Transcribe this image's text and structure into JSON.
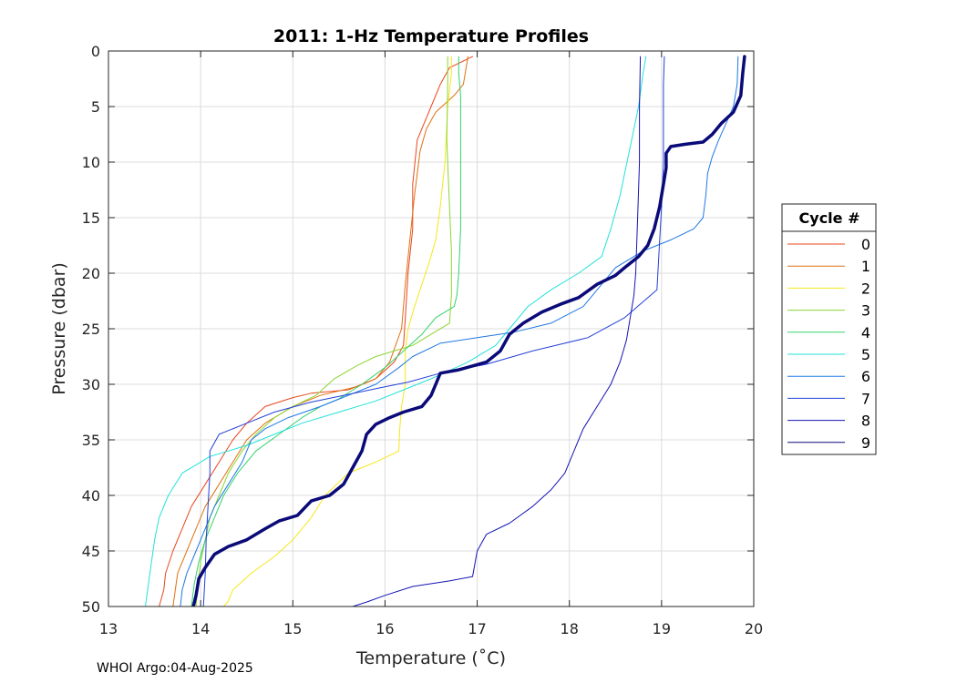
{
  "chart_data": {
    "type": "line",
    "title": "2011: 1-Hz Temperature Profiles",
    "xlabel": "Temperature (˚C)",
    "ylabel": "Pressure (dbar)",
    "xlim": [
      13,
      20
    ],
    "ylim": [
      0,
      50
    ],
    "y_reversed": true,
    "grid": true,
    "xticks": [
      13,
      14,
      15,
      16,
      17,
      18,
      19,
      20
    ],
    "yticks": [
      0,
      5,
      10,
      15,
      20,
      25,
      30,
      35,
      40,
      45,
      50
    ],
    "legend": {
      "title": "Cycle #",
      "placement": "right",
      "entries": [
        "0",
        "1",
        "2",
        "3",
        "4",
        "5",
        "6",
        "7",
        "8",
        "9"
      ]
    },
    "series": [
      {
        "name": "0",
        "color": "#e8461e",
        "width": 1,
        "points": [
          [
            16.95,
            0.5
          ],
          [
            16.7,
            1.5
          ],
          [
            16.6,
            3
          ],
          [
            16.5,
            5
          ],
          [
            16.35,
            8
          ],
          [
            16.3,
            12
          ],
          [
            16.3,
            16
          ],
          [
            16.25,
            20
          ],
          [
            16.22,
            24
          ],
          [
            16.2,
            26.5
          ],
          [
            16.1,
            28
          ],
          [
            15.9,
            29.5
          ],
          [
            15.6,
            30.5
          ],
          [
            15.2,
            30.8
          ],
          [
            15,
            31.2
          ],
          [
            14.7,
            32
          ],
          [
            14.5,
            33.5
          ],
          [
            14.35,
            35
          ],
          [
            14.2,
            37
          ],
          [
            14.05,
            39
          ],
          [
            13.9,
            41
          ],
          [
            13.8,
            43
          ],
          [
            13.7,
            45
          ],
          [
            13.62,
            47
          ],
          [
            13.6,
            48.5
          ],
          [
            13.55,
            50
          ]
        ]
      },
      {
        "name": "1",
        "color": "#e07010",
        "width": 1,
        "points": [
          [
            16.9,
            0.5
          ],
          [
            16.87,
            2
          ],
          [
            16.85,
            3
          ],
          [
            16.75,
            4
          ],
          [
            16.55,
            5.5
          ],
          [
            16.45,
            7
          ],
          [
            16.38,
            9
          ],
          [
            16.32,
            13
          ],
          [
            16.27,
            17
          ],
          [
            16.22,
            21
          ],
          [
            16.18,
            25
          ],
          [
            16.05,
            28
          ],
          [
            15.9,
            29.5
          ],
          [
            15.7,
            30.2
          ],
          [
            15.3,
            31
          ],
          [
            15,
            32
          ],
          [
            14.7,
            33.5
          ],
          [
            14.5,
            35
          ],
          [
            14.35,
            37
          ],
          [
            14.2,
            39
          ],
          [
            14.05,
            41
          ],
          [
            13.95,
            43
          ],
          [
            13.85,
            45
          ],
          [
            13.75,
            47
          ],
          [
            13.7,
            50
          ]
        ]
      },
      {
        "name": "2",
        "color": "#f5e817",
        "width": 1,
        "points": [
          [
            16.72,
            0.5
          ],
          [
            16.72,
            2
          ],
          [
            16.68,
            5
          ],
          [
            16.65,
            10
          ],
          [
            16.6,
            14
          ],
          [
            16.55,
            17
          ],
          [
            16.48,
            19
          ],
          [
            16.4,
            21
          ],
          [
            16.32,
            23
          ],
          [
            16.25,
            25
          ],
          [
            16.22,
            27
          ],
          [
            16.22,
            30
          ],
          [
            16.18,
            32
          ],
          [
            16.16,
            34
          ],
          [
            16.15,
            36
          ],
          [
            15.9,
            37
          ],
          [
            15.6,
            38
          ],
          [
            15.35,
            40
          ],
          [
            15.2,
            42
          ],
          [
            15,
            44
          ],
          [
            14.8,
            45.5
          ],
          [
            14.55,
            47
          ],
          [
            14.35,
            48.5
          ],
          [
            14.3,
            49.5
          ],
          [
            14.25,
            50
          ]
        ]
      },
      {
        "name": "3",
        "color": "#8cd631",
        "width": 1,
        "points": [
          [
            16.68,
            0.5
          ],
          [
            16.68,
            3
          ],
          [
            16.67,
            8
          ],
          [
            16.7,
            14
          ],
          [
            16.72,
            18
          ],
          [
            16.72,
            22
          ],
          [
            16.7,
            24.5
          ],
          [
            16.5,
            25.5
          ],
          [
            16.3,
            26.5
          ],
          [
            16.1,
            27
          ],
          [
            15.9,
            27.5
          ],
          [
            15.7,
            28.3
          ],
          [
            15.45,
            29.5
          ],
          [
            15.25,
            31
          ],
          [
            15,
            32
          ],
          [
            14.8,
            33
          ],
          [
            14.6,
            34.5
          ],
          [
            14.45,
            36
          ],
          [
            14.3,
            38
          ],
          [
            14.2,
            40
          ],
          [
            14.1,
            42
          ],
          [
            14.05,
            44
          ],
          [
            14,
            46
          ],
          [
            13.97,
            48
          ],
          [
            13.95,
            50
          ]
        ]
      },
      {
        "name": "4",
        "color": "#33d16a",
        "width": 1,
        "points": [
          [
            16.8,
            0.5
          ],
          [
            16.8,
            2
          ],
          [
            16.82,
            4
          ],
          [
            16.82,
            10
          ],
          [
            16.82,
            16
          ],
          [
            16.8,
            20
          ],
          [
            16.78,
            22
          ],
          [
            16.75,
            23
          ],
          [
            16.55,
            24
          ],
          [
            16.4,
            25.5
          ],
          [
            16.2,
            27
          ],
          [
            16,
            28.5
          ],
          [
            15.75,
            30
          ],
          [
            15.5,
            31.3
          ],
          [
            15.3,
            32
          ],
          [
            15.1,
            33
          ],
          [
            14.85,
            34.5
          ],
          [
            14.6,
            36
          ],
          [
            14.4,
            38
          ],
          [
            14.25,
            40
          ],
          [
            14.15,
            42
          ],
          [
            14.05,
            44
          ],
          [
            13.98,
            46
          ],
          [
            13.93,
            48
          ],
          [
            13.9,
            50
          ]
        ]
      },
      {
        "name": "5",
        "color": "#21e2d8",
        "width": 1,
        "points": [
          [
            18.83,
            0.5
          ],
          [
            18.8,
            2
          ],
          [
            18.75,
            5
          ],
          [
            18.65,
            9
          ],
          [
            18.55,
            13
          ],
          [
            18.45,
            16
          ],
          [
            18.35,
            18.5
          ],
          [
            18.1,
            20
          ],
          [
            17.8,
            21.5
          ],
          [
            17.55,
            23
          ],
          [
            17.35,
            25
          ],
          [
            17.2,
            26.5
          ],
          [
            16.9,
            28
          ],
          [
            16.5,
            29.5
          ],
          [
            16.2,
            30.5
          ],
          [
            15.9,
            31.5
          ],
          [
            15.5,
            32.5
          ],
          [
            15.1,
            33.5
          ],
          [
            14.8,
            34.5
          ],
          [
            14.5,
            35.5
          ],
          [
            14.1,
            36.5
          ],
          [
            13.8,
            38
          ],
          [
            13.65,
            40
          ],
          [
            13.55,
            42
          ],
          [
            13.5,
            44
          ],
          [
            13.45,
            47
          ],
          [
            13.4,
            50
          ]
        ]
      },
      {
        "name": "6",
        "color": "#1e78e6",
        "width": 1,
        "points": [
          [
            19.83,
            0.5
          ],
          [
            19.82,
            3
          ],
          [
            19.78,
            5
          ],
          [
            19.7,
            6.5
          ],
          [
            19.62,
            8
          ],
          [
            19.55,
            9.5
          ],
          [
            19.5,
            11
          ],
          [
            19.48,
            13
          ],
          [
            19.45,
            15
          ],
          [
            19.35,
            16
          ],
          [
            19.1,
            17
          ],
          [
            18.8,
            18
          ],
          [
            18.5,
            19.5
          ],
          [
            18.3,
            21.5
          ],
          [
            18.15,
            23
          ],
          [
            17.8,
            24.5
          ],
          [
            17.4,
            25.3
          ],
          [
            17,
            25.8
          ],
          [
            16.6,
            26.3
          ],
          [
            16.3,
            27.5
          ],
          [
            16.15,
            28.5
          ],
          [
            15.9,
            30
          ],
          [
            15.6,
            31
          ],
          [
            15.3,
            32
          ],
          [
            14.95,
            33
          ],
          [
            14.7,
            34
          ],
          [
            14.55,
            35
          ],
          [
            14.45,
            37
          ],
          [
            14.3,
            39
          ],
          [
            14.15,
            41
          ],
          [
            14.05,
            43
          ],
          [
            13.95,
            45
          ],
          [
            13.85,
            47
          ],
          [
            13.8,
            48.5
          ],
          [
            13.78,
            50
          ]
        ]
      },
      {
        "name": "7",
        "color": "#2240d8",
        "width": 1,
        "points": [
          [
            19.03,
            0.5
          ],
          [
            19.02,
            3
          ],
          [
            19.02,
            6
          ],
          [
            19.02,
            10
          ],
          [
            19,
            14
          ],
          [
            18.98,
            17
          ],
          [
            18.96,
            20
          ],
          [
            18.95,
            21.5
          ],
          [
            18.6,
            24
          ],
          [
            18.2,
            25.8
          ],
          [
            17.6,
            27
          ],
          [
            17.1,
            28.2
          ],
          [
            16.6,
            29
          ],
          [
            16.25,
            29.8
          ],
          [
            15.95,
            30.3
          ],
          [
            15.55,
            31
          ],
          [
            15.2,
            31.6
          ],
          [
            14.8,
            32.5
          ],
          [
            14.5,
            33.5
          ],
          [
            14.2,
            34.5
          ],
          [
            14.1,
            36
          ],
          [
            14.1,
            38
          ],
          [
            14.08,
            41
          ],
          [
            14.06,
            44
          ],
          [
            14.05,
            47
          ],
          [
            14.03,
            50
          ]
        ]
      },
      {
        "name": "8",
        "color": "#1414b4",
        "width": 1,
        "points": [
          [
            18.77,
            0.5
          ],
          [
            18.76,
            5
          ],
          [
            18.76,
            10
          ],
          [
            18.74,
            15
          ],
          [
            18.72,
            20
          ],
          [
            18.7,
            22
          ],
          [
            18.62,
            26
          ],
          [
            18.55,
            28
          ],
          [
            18.45,
            30
          ],
          [
            18.3,
            32
          ],
          [
            18.15,
            34
          ],
          [
            18.05,
            36
          ],
          [
            17.95,
            38
          ],
          [
            17.8,
            39.5
          ],
          [
            17.6,
            41
          ],
          [
            17.35,
            42.5
          ],
          [
            17.1,
            43.5
          ],
          [
            17,
            45
          ],
          [
            16.95,
            47.3
          ],
          [
            16.7,
            47.7
          ],
          [
            16.3,
            48.2
          ],
          [
            16,
            49
          ],
          [
            15.8,
            49.6
          ],
          [
            15.65,
            50
          ]
        ]
      },
      {
        "name": "9",
        "color": "#0a0a78",
        "width": 3.5,
        "points": [
          [
            19.9,
            0.5
          ],
          [
            19.88,
            2
          ],
          [
            19.86,
            4
          ],
          [
            19.78,
            5.5
          ],
          [
            19.65,
            6.5
          ],
          [
            19.55,
            7.5
          ],
          [
            19.45,
            8.2
          ],
          [
            19.25,
            8.4
          ],
          [
            19.1,
            8.6
          ],
          [
            19.05,
            9.2
          ],
          [
            19.05,
            10.5
          ],
          [
            19.02,
            12
          ],
          [
            18.98,
            14
          ],
          [
            18.92,
            16
          ],
          [
            18.85,
            17.5
          ],
          [
            18.75,
            18.5
          ],
          [
            18.6,
            19.5
          ],
          [
            18.5,
            20.2
          ],
          [
            18.3,
            21
          ],
          [
            18.1,
            22.2
          ],
          [
            17.9,
            22.8
          ],
          [
            17.7,
            23.5
          ],
          [
            17.5,
            24.5
          ],
          [
            17.35,
            25.5
          ],
          [
            17.25,
            27
          ],
          [
            17.1,
            28
          ],
          [
            16.8,
            28.7
          ],
          [
            16.6,
            29
          ],
          [
            16.55,
            30
          ],
          [
            16.5,
            31
          ],
          [
            16.4,
            32
          ],
          [
            16.2,
            32.5
          ],
          [
            16.05,
            33
          ],
          [
            15.9,
            33.6
          ],
          [
            15.8,
            34.5
          ],
          [
            15.75,
            36
          ],
          [
            15.65,
            37.5
          ],
          [
            15.55,
            39
          ],
          [
            15.4,
            40
          ],
          [
            15.2,
            40.5
          ],
          [
            15.05,
            41.8
          ],
          [
            14.85,
            42.3
          ],
          [
            14.7,
            43
          ],
          [
            14.5,
            44
          ],
          [
            14.3,
            44.6
          ],
          [
            14.15,
            45.3
          ],
          [
            14.05,
            46.5
          ],
          [
            13.98,
            47.5
          ],
          [
            13.95,
            49
          ],
          [
            13.92,
            50
          ]
        ]
      }
    ]
  },
  "footnote": "WHOI Argo:04-Aug-2025"
}
